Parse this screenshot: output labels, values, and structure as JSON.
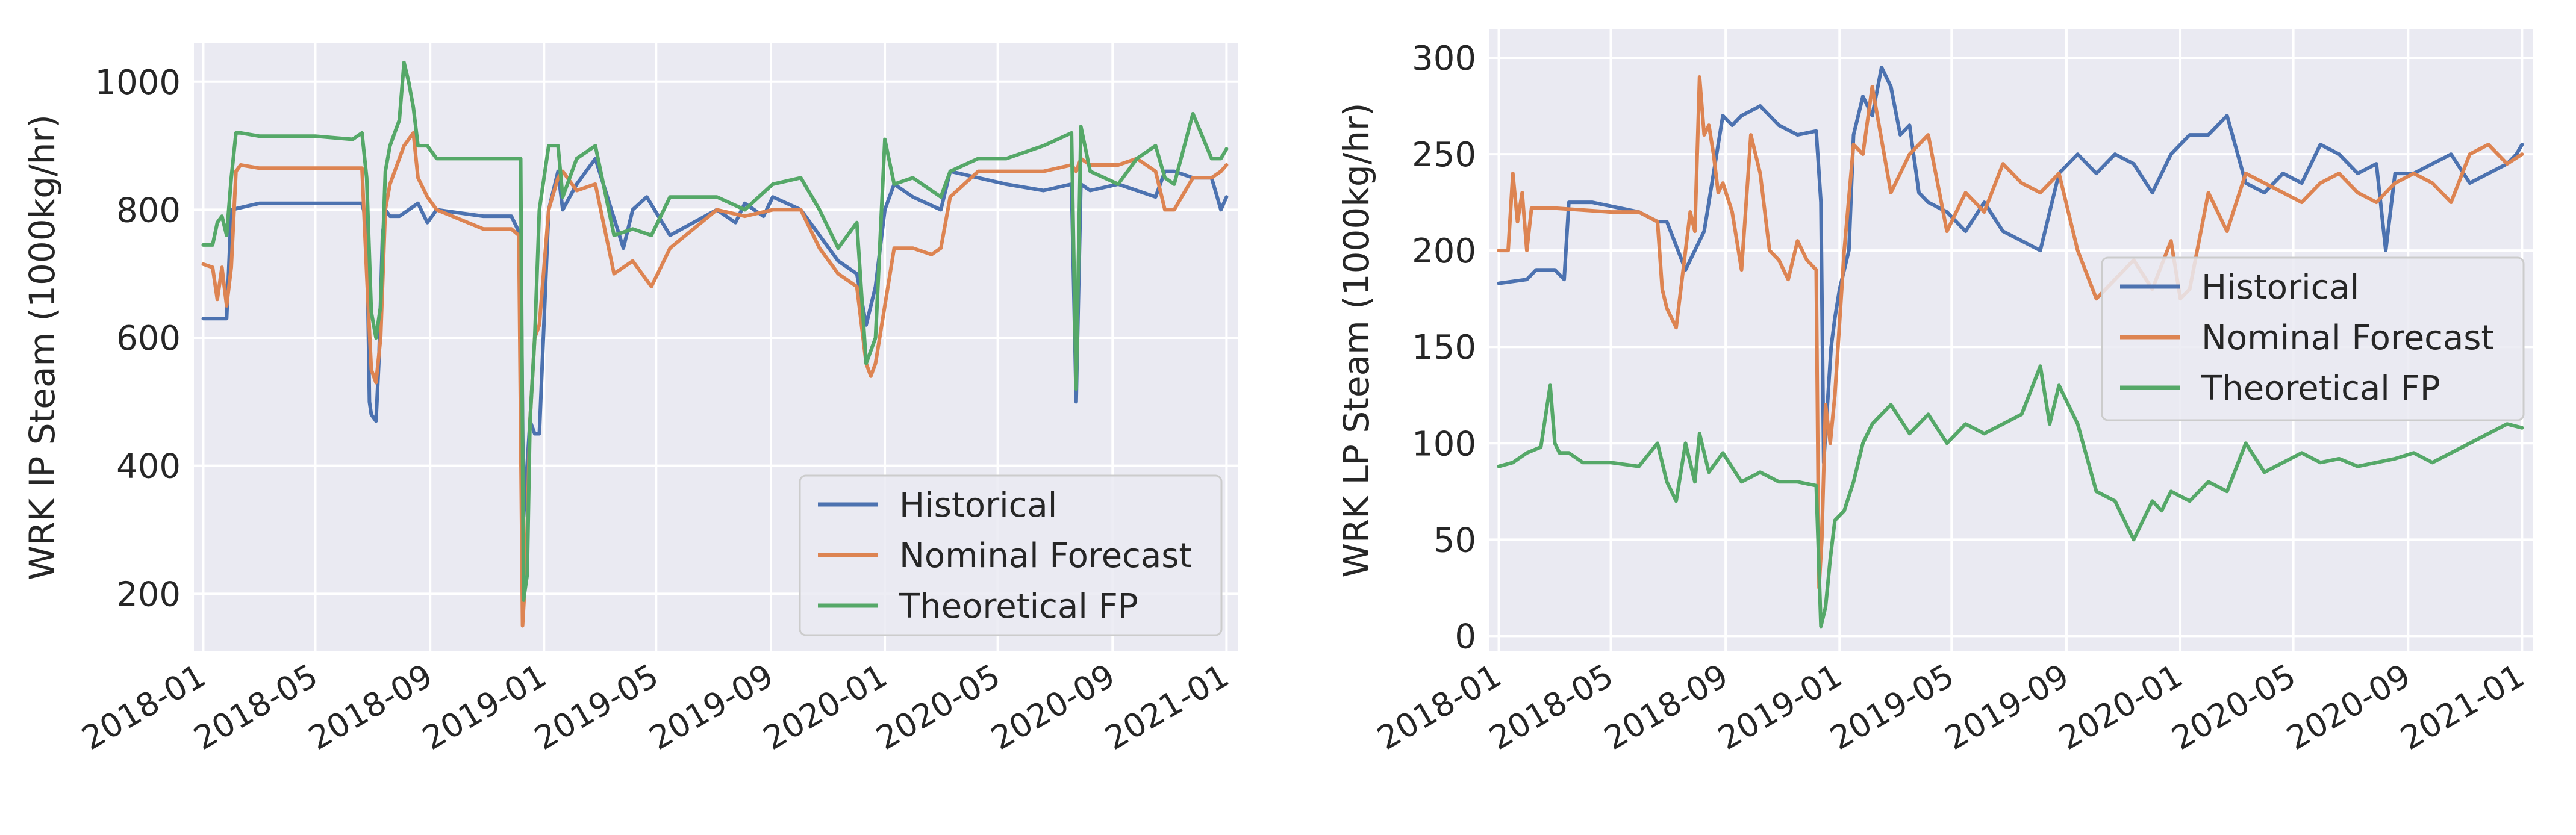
{
  "colors": {
    "background": "#eaeaf2",
    "grid": "#ffffff",
    "historical": "#4c72b0",
    "nominal": "#dd8452",
    "theoretical": "#55a868",
    "legend_bg": "#eaeaf2",
    "legend_border": "#cccccc"
  },
  "chart_data": [
    {
      "type": "line",
      "ylabel": "WRK IP Steam (1000kg/hr)",
      "xlabel": "",
      "ylim": [
        110,
        1060
      ],
      "yticks": [
        200,
        400,
        600,
        800,
        1000
      ],
      "ytick_labels": [
        "200",
        "400",
        "600",
        "800",
        "1000"
      ],
      "xlim": [
        -10,
        1108
      ],
      "xticks": [
        0,
        120,
        243,
        365,
        485,
        608,
        730,
        851,
        974,
        1096
      ],
      "xtick_labels": [
        "2018-01",
        "2018-05",
        "2018-09",
        "2019-01",
        "2019-05",
        "2019-09",
        "2020-01",
        "2020-05",
        "2020-09",
        "2021-01"
      ],
      "legend": {
        "position": "lower-right",
        "entries": [
          "Historical",
          "Nominal Forecast",
          "Theoretical FP"
        ]
      },
      "series": [
        {
          "name": "Historical",
          "color_key": "historical",
          "x": [
            0,
            25,
            30,
            60,
            120,
            170,
            175,
            178,
            180,
            185,
            188,
            192,
            195,
            200,
            210,
            230,
            240,
            250,
            300,
            330,
            340,
            343,
            346,
            350,
            355,
            360,
            370,
            380,
            385,
            400,
            420,
            450,
            460,
            475,
            500,
            550,
            570,
            580,
            590,
            600,
            610,
            640,
            660,
            680,
            700,
            710,
            720,
            730,
            740,
            760,
            790,
            800,
            830,
            860,
            900,
            930,
            935,
            940,
            950,
            980,
            1000,
            1020,
            1030,
            1040,
            1060,
            1080,
            1090,
            1096
          ],
          "y": [
            630,
            630,
            800,
            810,
            810,
            810,
            780,
            500,
            480,
            470,
            560,
            760,
            800,
            790,
            790,
            810,
            780,
            800,
            790,
            790,
            760,
            320,
            380,
            470,
            450,
            450,
            800,
            860,
            800,
            840,
            880,
            740,
            800,
            820,
            760,
            800,
            780,
            810,
            800,
            790,
            820,
            800,
            760,
            720,
            700,
            620,
            680,
            800,
            840,
            820,
            800,
            860,
            850,
            840,
            830,
            840,
            500,
            840,
            830,
            840,
            830,
            820,
            860,
            860,
            850,
            850,
            800,
            820
          ]
        },
        {
          "name": "Nominal Forecast",
          "color_key": "nominal",
          "x": [
            0,
            10,
            15,
            20,
            25,
            30,
            35,
            40,
            60,
            120,
            170,
            175,
            180,
            185,
            190,
            195,
            200,
            215,
            225,
            230,
            240,
            250,
            300,
            330,
            338,
            342,
            346,
            350,
            355,
            360,
            370,
            380,
            385,
            400,
            420,
            440,
            460,
            480,
            500,
            550,
            580,
            610,
            640,
            660,
            680,
            700,
            710,
            715,
            720,
            740,
            760,
            780,
            790,
            800,
            830,
            860,
            900,
            930,
            935,
            940,
            950,
            980,
            1000,
            1020,
            1030,
            1040,
            1060,
            1080,
            1090,
            1096
          ],
          "y": [
            715,
            710,
            660,
            710,
            650,
            710,
            860,
            870,
            865,
            865,
            865,
            700,
            550,
            530,
            600,
            800,
            840,
            900,
            920,
            850,
            820,
            800,
            770,
            770,
            760,
            150,
            250,
            470,
            600,
            620,
            800,
            850,
            860,
            830,
            840,
            700,
            720,
            680,
            740,
            800,
            790,
            800,
            800,
            740,
            700,
            680,
            560,
            540,
            560,
            740,
            740,
            730,
            740,
            820,
            860,
            860,
            860,
            870,
            860,
            880,
            870,
            870,
            880,
            860,
            800,
            800,
            850,
            850,
            860,
            870
          ]
        },
        {
          "name": "Theoretical FP",
          "color_key": "theoretical",
          "x": [
            0,
            10,
            15,
            20,
            25,
            30,
            35,
            40,
            60,
            120,
            160,
            170,
            175,
            180,
            185,
            190,
            195,
            200,
            210,
            215,
            220,
            225,
            230,
            240,
            250,
            300,
            330,
            340,
            343,
            347,
            350,
            355,
            360,
            370,
            380,
            385,
            400,
            420,
            440,
            460,
            480,
            500,
            550,
            580,
            610,
            640,
            660,
            680,
            700,
            710,
            720,
            730,
            740,
            760,
            790,
            800,
            830,
            860,
            900,
            930,
            935,
            940,
            950,
            980,
            1000,
            1020,
            1030,
            1040,
            1060,
            1080,
            1090,
            1096
          ],
          "y": [
            745,
            745,
            780,
            790,
            760,
            850,
            920,
            920,
            915,
            915,
            910,
            920,
            850,
            640,
            600,
            650,
            860,
            900,
            940,
            1030,
            1000,
            960,
            900,
            900,
            880,
            880,
            880,
            880,
            190,
            230,
            470,
            600,
            800,
            900,
            900,
            820,
            880,
            900,
            760,
            770,
            760,
            820,
            820,
            800,
            840,
            850,
            800,
            740,
            780,
            560,
            600,
            910,
            840,
            850,
            820,
            860,
            880,
            880,
            900,
            920,
            520,
            930,
            860,
            840,
            880,
            900,
            850,
            840,
            950,
            880,
            880,
            895
          ]
        }
      ]
    },
    {
      "type": "line",
      "ylabel": "WRK LP Steam (1000kg/hr)",
      "xlabel": "",
      "ylim": [
        -8,
        315
      ],
      "yticks": [
        0,
        50,
        100,
        150,
        200,
        250,
        300
      ],
      "ytick_labels": [
        "0",
        "50",
        "100",
        "150",
        "200",
        "250",
        "300"
      ],
      "xlim": [
        -10,
        1108
      ],
      "xticks": [
        0,
        120,
        243,
        365,
        485,
        608,
        730,
        851,
        974,
        1096
      ],
      "xtick_labels": [
        "2018-01",
        "2018-05",
        "2018-09",
        "2019-01",
        "2019-05",
        "2019-09",
        "2020-01",
        "2020-05",
        "2020-09",
        "2021-01"
      ],
      "legend": {
        "position": "right",
        "entries": [
          "Historical",
          "Nominal Forecast",
          "Theoretical FP"
        ]
      },
      "series": [
        {
          "name": "Historical",
          "color_key": "historical",
          "x": [
            0,
            30,
            40,
            60,
            70,
            75,
            80,
            100,
            150,
            170,
            180,
            200,
            220,
            240,
            250,
            260,
            280,
            300,
            320,
            340,
            345,
            348,
            352,
            356,
            360,
            365,
            375,
            380,
            390,
            400,
            410,
            420,
            430,
            440,
            450,
            460,
            480,
            500,
            520,
            540,
            560,
            580,
            600,
            620,
            640,
            660,
            680,
            700,
            720,
            740,
            760,
            780,
            800,
            820,
            840,
            860,
            880,
            900,
            920,
            940,
            950,
            960,
            980,
            1000,
            1020,
            1040,
            1060,
            1080,
            1090,
            1096
          ],
          "y": [
            183,
            185,
            190,
            190,
            185,
            225,
            225,
            225,
            220,
            215,
            215,
            190,
            210,
            270,
            265,
            270,
            275,
            265,
            260,
            262,
            225,
            90,
            120,
            150,
            165,
            180,
            200,
            260,
            280,
            270,
            295,
            285,
            260,
            265,
            230,
            225,
            220,
            210,
            225,
            210,
            205,
            200,
            240,
            250,
            240,
            250,
            245,
            230,
            250,
            260,
            260,
            270,
            235,
            230,
            240,
            235,
            255,
            250,
            240,
            245,
            200,
            240,
            240,
            245,
            250,
            235,
            240,
            245,
            250,
            255
          ]
        },
        {
          "name": "Nominal Forecast",
          "color_key": "nominal",
          "x": [
            0,
            10,
            15,
            20,
            25,
            30,
            35,
            60,
            120,
            150,
            170,
            175,
            180,
            190,
            200,
            205,
            210,
            215,
            220,
            225,
            230,
            235,
            240,
            250,
            260,
            270,
            280,
            290,
            300,
            310,
            320,
            330,
            340,
            343,
            346,
            350,
            355,
            360,
            370,
            380,
            390,
            400,
            420,
            440,
            460,
            480,
            500,
            520,
            540,
            560,
            580,
            600,
            620,
            640,
            660,
            680,
            700,
            720,
            730,
            740,
            760,
            780,
            800,
            820,
            840,
            860,
            880,
            900,
            920,
            940,
            960,
            980,
            1000,
            1020,
            1040,
            1060,
            1080,
            1096
          ],
          "y": [
            200,
            200,
            240,
            215,
            230,
            200,
            222,
            222,
            220,
            220,
            215,
            180,
            170,
            160,
            200,
            220,
            210,
            290,
            260,
            265,
            250,
            230,
            235,
            220,
            190,
            260,
            240,
            200,
            195,
            185,
            205,
            195,
            190,
            25,
            50,
            120,
            100,
            125,
            200,
            255,
            250,
            285,
            230,
            250,
            260,
            210,
            230,
            220,
            245,
            235,
            230,
            240,
            200,
            175,
            185,
            195,
            180,
            205,
            175,
            180,
            230,
            210,
            240,
            235,
            230,
            225,
            235,
            240,
            230,
            225,
            235,
            240,
            235,
            225,
            250,
            255,
            245,
            250
          ]
        },
        {
          "name": "Theoretical FP",
          "color_key": "theoretical",
          "x": [
            0,
            15,
            30,
            45,
            55,
            60,
            65,
            75,
            90,
            120,
            150,
            170,
            180,
            185,
            190,
            200,
            210,
            215,
            220,
            225,
            240,
            260,
            280,
            300,
            320,
            340,
            345,
            350,
            355,
            360,
            370,
            380,
            390,
            400,
            420,
            440,
            460,
            480,
            500,
            520,
            540,
            560,
            580,
            590,
            600,
            610,
            620,
            640,
            660,
            680,
            700,
            710,
            720,
            740,
            760,
            780,
            800,
            820,
            840,
            860,
            880,
            900,
            920,
            940,
            960,
            980,
            1000,
            1020,
            1040,
            1060,
            1080,
            1096
          ],
          "y": [
            88,
            90,
            95,
            98,
            130,
            100,
            95,
            95,
            90,
            90,
            88,
            100,
            80,
            75,
            70,
            100,
            80,
            105,
            95,
            85,
            95,
            80,
            85,
            80,
            80,
            78,
            5,
            15,
            40,
            60,
            65,
            80,
            100,
            110,
            120,
            105,
            115,
            100,
            110,
            105,
            110,
            115,
            140,
            110,
            130,
            120,
            110,
            75,
            70,
            50,
            70,
            65,
            75,
            70,
            80,
            75,
            100,
            85,
            90,
            95,
            90,
            92,
            88,
            90,
            92,
            95,
            90,
            95,
            100,
            105,
            110,
            108
          ]
        }
      ]
    }
  ]
}
